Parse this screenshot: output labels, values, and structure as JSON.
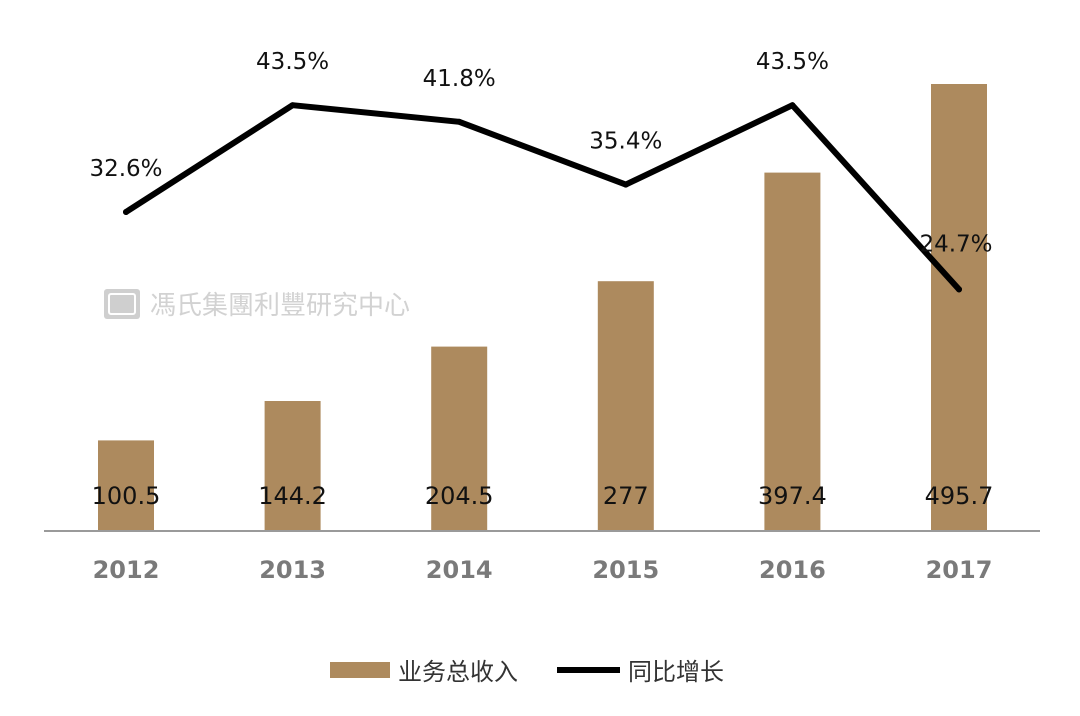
{
  "chart_data": {
    "type": "bar",
    "categories": [
      "2012",
      "2013",
      "2014",
      "2015",
      "2016",
      "2017"
    ],
    "series": [
      {
        "name": "业务总收入",
        "type": "bar",
        "values": [
          100.5,
          144.2,
          204.5,
          277,
          397.4,
          495.7
        ],
        "labels": [
          "100.5",
          "144.2",
          "204.5",
          "277",
          "397.4",
          "495.7"
        ],
        "color": "#ad8a5e"
      },
      {
        "name": "同比增长",
        "type": "line",
        "values": [
          32.6,
          43.5,
          41.8,
          35.4,
          43.5,
          24.7
        ],
        "labels": [
          "32.6%",
          "43.5%",
          "41.8%",
          "35.4%",
          "43.5%",
          "24.7%"
        ],
        "color": "#000000"
      }
    ],
    "legend": "bottom",
    "grid": false
  },
  "watermark": {
    "text": "馮氏集團利豐研究中心"
  },
  "colors": {
    "bar": "#ad8a5e",
    "line": "#000000",
    "axis": "#9a9a9a",
    "tick": "#7a7a7a"
  }
}
